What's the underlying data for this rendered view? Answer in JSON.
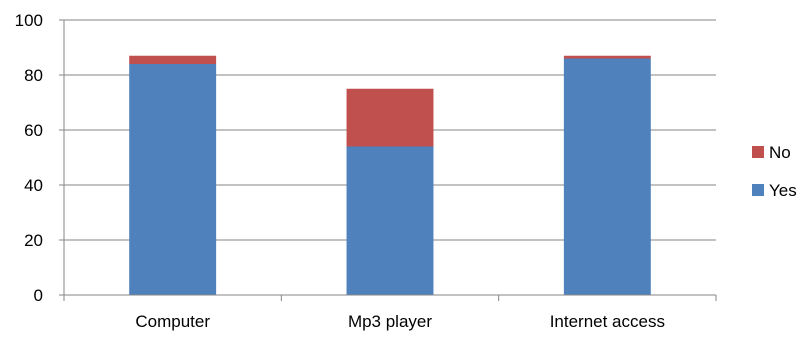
{
  "chart_data": {
    "type": "bar",
    "stacked": true,
    "title": "",
    "xlabel": "",
    "ylabel": "",
    "categories": [
      "Computer",
      "Mp3 player",
      "Internet access"
    ],
    "series": [
      {
        "name": "Yes",
        "values": [
          84,
          54,
          86
        ],
        "color": "#4f81bd"
      },
      {
        "name": "No",
        "values": [
          3,
          21,
          1
        ],
        "color": "#c0504d"
      }
    ],
    "ylim": [
      0,
      100
    ],
    "yticks": [
      "0",
      "20",
      "40",
      "60",
      "80",
      "100"
    ],
    "ytick_values": [
      0,
      20,
      40,
      60,
      80,
      100
    ],
    "grid": true,
    "legend_position": "right",
    "legend_order": [
      "No",
      "Yes"
    ]
  }
}
